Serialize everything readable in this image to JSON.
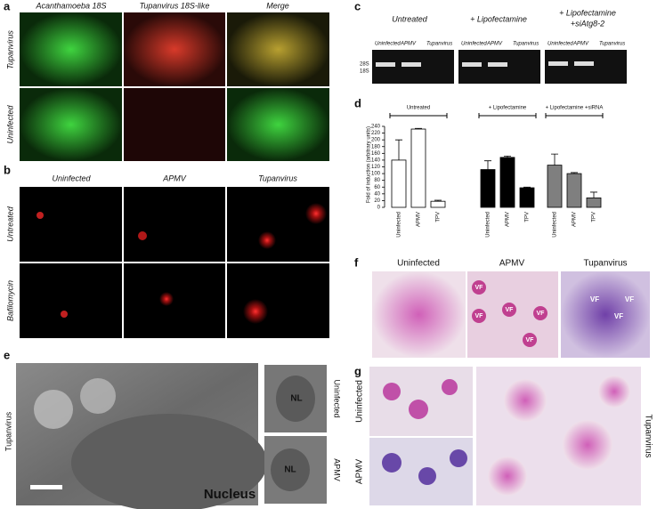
{
  "panels": {
    "a": {
      "label": "a",
      "columns": [
        "Acanthamoeba 18S",
        "Tupanvirus 18S-like",
        "Merge"
      ],
      "rows": [
        "Tupanvirus",
        "Uninfected"
      ]
    },
    "b": {
      "label": "b",
      "columns": [
        "Uninfected",
        "APMV",
        "Tupanvirus"
      ],
      "rows": [
        "Untreated",
        "Bafilomycin"
      ]
    },
    "c": {
      "label": "c",
      "groups": [
        [
          "Untreated"
        ],
        [
          "+ Lipofectamine"
        ],
        [
          "+ Lipofectamine",
          "+siAtg8-2"
        ]
      ],
      "lanes": [
        "Uninfected",
        "APMV",
        "Tupanvirus"
      ],
      "bands": [
        "28S",
        "18S"
      ]
    },
    "d": {
      "label": "d"
    },
    "e": {
      "label": "e",
      "row_label": "Tupanvirus",
      "nucleus": "Nucleus",
      "nl": [
        "NL",
        "NL"
      ],
      "side_labels": [
        "Uninfected",
        "APMV"
      ]
    },
    "f": {
      "label": "f",
      "columns": [
        "Uninfected",
        "APMV",
        "Tupanvirus"
      ],
      "apmv_vf": [
        "VF",
        "VF",
        "VF",
        "VF",
        "VF"
      ],
      "tupan_vf": [
        "VF",
        "VF",
        "VF"
      ]
    },
    "g": {
      "label": "g",
      "rows": [
        "Uninfected",
        "APMV"
      ],
      "side": "Tupanvirus"
    }
  },
  "chart_data": {
    "type": "bar",
    "ylabel": "Fold of induction (arbitrary units)",
    "categories": [
      "Uninfected",
      "APMV",
      "TPV"
    ],
    "series": [
      {
        "name": "Untreated",
        "color": "#ffffff",
        "values": [
          140,
          232,
          18
        ],
        "errors": [
          60,
          2,
          3
        ]
      },
      {
        "name": "+ Lipofectamine",
        "color": "#000000",
        "values": [
          112,
          148,
          58
        ],
        "errors": [
          26,
          4,
          2
        ]
      },
      {
        "name": "+ Lipofectamine +siRNA",
        "color": "#7f7f7f",
        "values": [
          125,
          100,
          28
        ],
        "errors": [
          33,
          3,
          17
        ]
      }
    ],
    "ylim": [
      0,
      240
    ],
    "yticks": [
      0,
      20,
      40,
      60,
      80,
      100,
      120,
      140,
      160,
      180,
      200,
      220,
      240
    ]
  }
}
